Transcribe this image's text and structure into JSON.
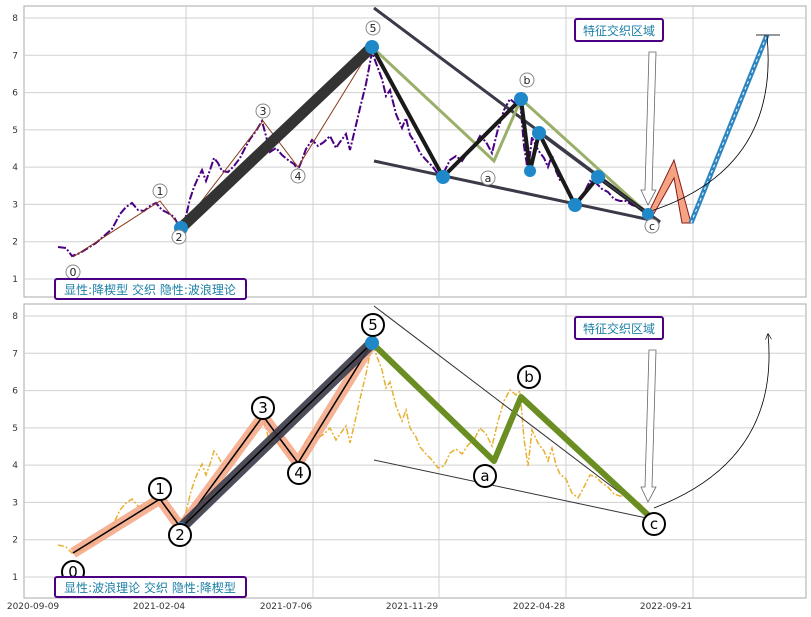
{
  "chart_data": [
    {
      "type": "line",
      "panel": "top",
      "x_ticks": [
        "2020-09-09",
        "2021-02-04",
        "2021-07-06",
        "2021-11-29",
        "2022-04-28",
        "2022-09-21"
      ],
      "y_ticks": [
        1,
        2,
        3,
        4,
        5,
        6,
        7,
        8
      ],
      "ylim": [
        0.6,
        8.3
      ],
      "grid": true,
      "title_box": "显性:降楔型 交织 隐性:波浪理论",
      "zone_label": "特征交织区域",
      "wave_points": [
        {
          "label": "0",
          "date": "2020-10-28",
          "value": 1.55
        },
        {
          "label": "1",
          "date": "2021-01-12",
          "value": 3.1
        },
        {
          "label": "2",
          "date": "2021-02-06",
          "value": 2.35
        },
        {
          "label": "3",
          "date": "2021-05-05",
          "value": 5.25
        },
        {
          "label": "4",
          "date": "2021-06-18",
          "value": 4.0
        },
        {
          "label": "5",
          "date": "2021-10-15",
          "value": 7.2
        },
        {
          "label": "a",
          "date": "2022-02-28",
          "value": 3.75
        },
        {
          "label": "b",
          "date": "2022-04-25",
          "value": 5.85
        },
        {
          "label": "c",
          "date": "2022-09-07",
          "value": 2.7
        }
      ]
    },
    {
      "type": "line",
      "panel": "bottom",
      "x_ticks": [
        "2020-09-09",
        "2021-02-04",
        "2021-07-06",
        "2021-11-29",
        "2022-04-28",
        "2022-09-21"
      ],
      "y_ticks": [
        1,
        2,
        3,
        4,
        5,
        6,
        7,
        8
      ],
      "ylim": [
        0.6,
        8.3
      ],
      "grid": true,
      "title_box": "显性:波浪理论 交织 隐性:降楔型",
      "zone_label": "特征交织区域",
      "wave_points": [
        {
          "label": "0",
          "date": "2020-10-28",
          "value": 1.55
        },
        {
          "label": "1",
          "date": "2021-01-12",
          "value": 3.1
        },
        {
          "label": "2",
          "date": "2021-02-06",
          "value": 2.3
        },
        {
          "label": "3",
          "date": "2021-05-05",
          "value": 5.3
        },
        {
          "label": "4",
          "date": "2021-06-18",
          "value": 4.0
        },
        {
          "label": "5",
          "date": "2021-10-15",
          "value": 7.2
        },
        {
          "label": "a",
          "date": "2022-02-28",
          "value": 4.1
        },
        {
          "label": "b",
          "date": "2022-04-25",
          "value": 5.85
        },
        {
          "label": "c",
          "date": "2022-09-07",
          "value": 2.6
        }
      ]
    }
  ],
  "colors": {
    "top_price": "#4b0082",
    "bottom_price": "#e8b030",
    "wedge": "#3a3a48",
    "abc_green_top": "#9ab06a",
    "abc_green_bottom": "#6b8e23",
    "dots": "#1e88c8",
    "impulse_fill": "#f5a483",
    "projection_blue": "#2e86c1",
    "box_border": "#4b0082",
    "annot_text": "#1a7fa6"
  }
}
